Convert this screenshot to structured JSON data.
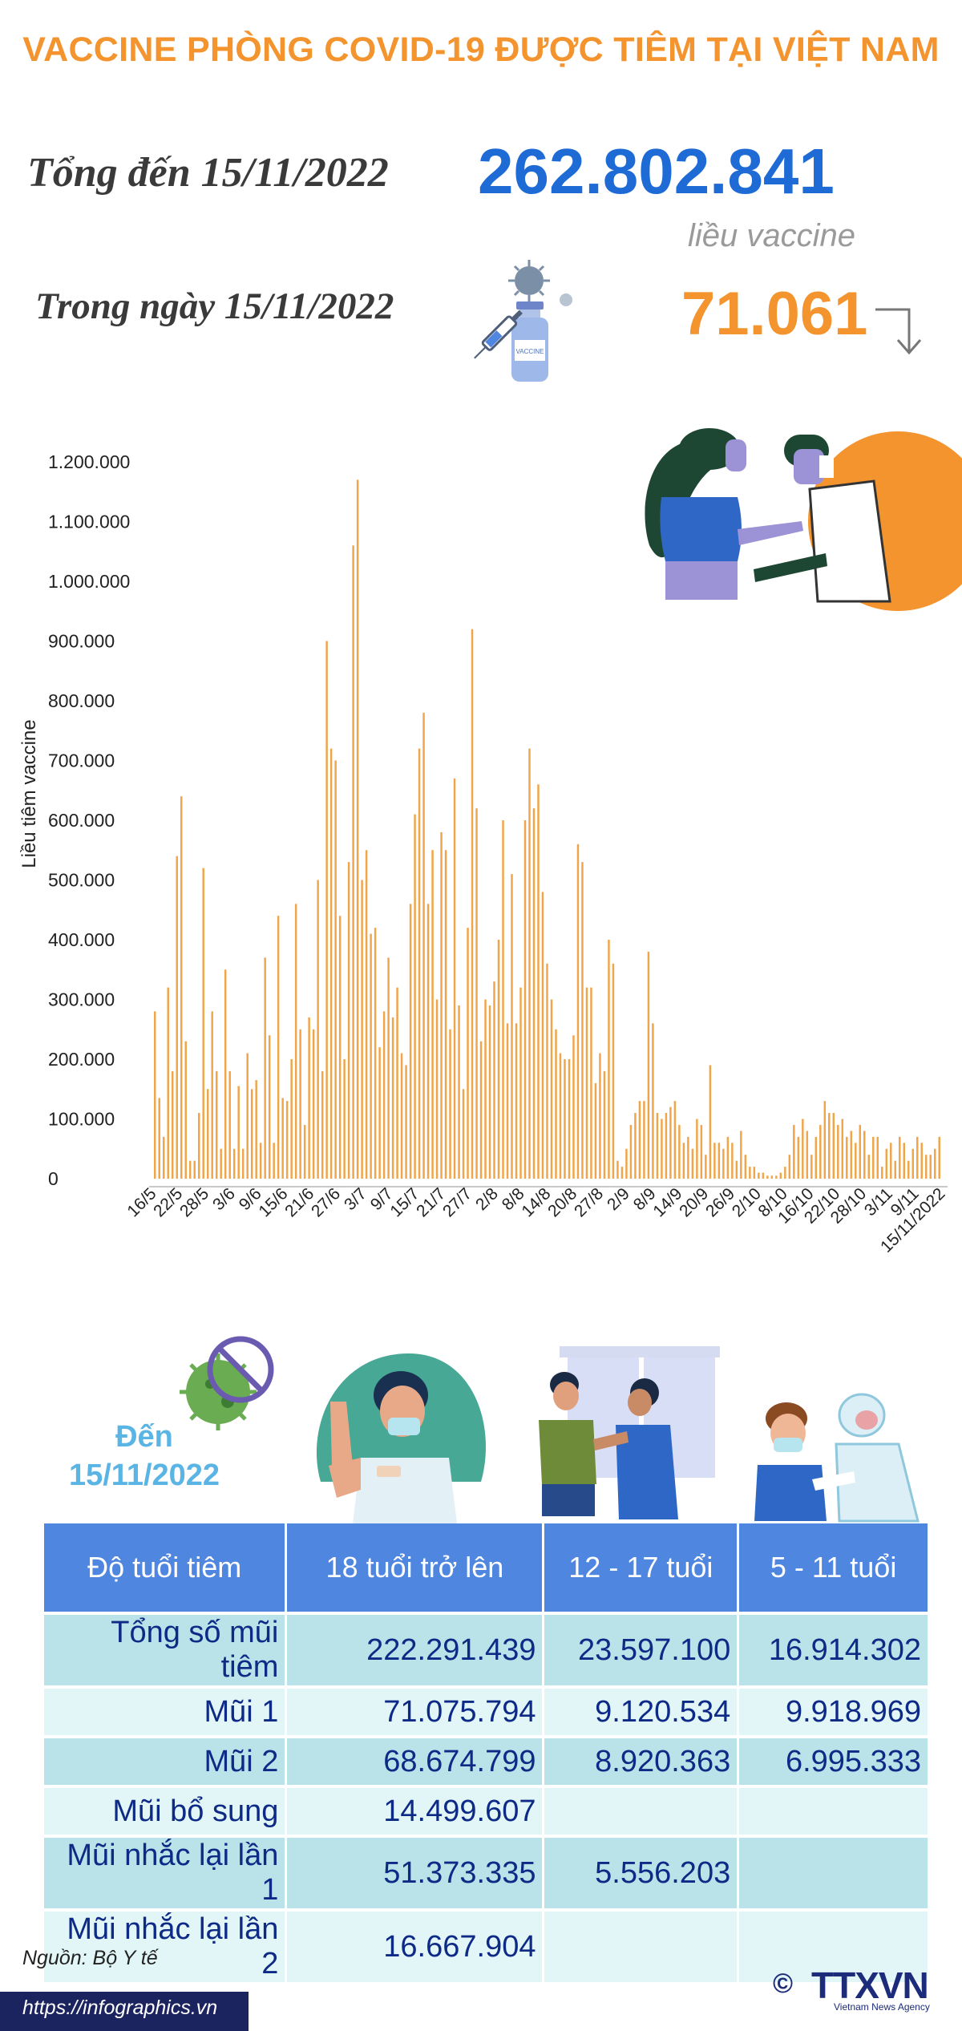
{
  "header": {
    "title": "VACCINE PHÒNG COVID-19 ĐƯỢC TIÊM TẠI VIỆT NAM",
    "total_label": "Tổng đến 15/11/2022",
    "total_value": "262.802.841",
    "total_unit": "liều vaccine",
    "day_label": "Trong ngày 15/11/2022",
    "day_value": "71.061",
    "trend": "down",
    "colors": {
      "orange": "#f3942f",
      "blue": "#1e6bd6"
    }
  },
  "chart_data": {
    "type": "bar",
    "ylabel": "Liều tiêm vaccine",
    "ylim": [
      0,
      1200000
    ],
    "yticks": [
      "0",
      "100.000",
      "200.000",
      "300.000",
      "400.000",
      "500.000",
      "600.000",
      "700.000",
      "800.000",
      "900.000",
      "1.000.000",
      "1.100.000",
      "1.200.000"
    ],
    "xtick_labels": [
      "16/5",
      "22/5",
      "28/5",
      "3/6",
      "9/6",
      "15/6",
      "21/6",
      "27/6",
      "3/7",
      "9/7",
      "15/7",
      "21/7",
      "27/7",
      "2/8",
      "8/8",
      "14/8",
      "20/8",
      "27/8",
      "2/9",
      "8/9",
      "14/9",
      "20/9",
      "26/9",
      "2/10",
      "8/10",
      "16/10",
      "22/10",
      "28/10",
      "3/11",
      "9/11",
      "15/11/2022"
    ],
    "bar_color": "#f0a54a",
    "values": [
      280000,
      135000,
      70000,
      320000,
      180000,
      540000,
      640000,
      230000,
      30000,
      30000,
      110000,
      520000,
      150000,
      280000,
      180000,
      50000,
      350000,
      180000,
      50000,
      155000,
      50000,
      210000,
      150000,
      165000,
      60000,
      370000,
      240000,
      60000,
      440000,
      135000,
      130000,
      200000,
      460000,
      250000,
      90000,
      270000,
      250000,
      500000,
      180000,
      900000,
      720000,
      700000,
      440000,
      200000,
      530000,
      1060000,
      1170000,
      500000,
      550000,
      410000,
      420000,
      220000,
      280000,
      370000,
      270000,
      320000,
      210000,
      190000,
      460000,
      610000,
      720000,
      780000,
      460000,
      550000,
      300000,
      580000,
      550000,
      250000,
      670000,
      290000,
      150000,
      420000,
      920000,
      620000,
      230000,
      300000,
      290000,
      330000,
      400000,
      600000,
      260000,
      510000,
      260000,
      320000,
      600000,
      720000,
      620000,
      660000,
      480000,
      360000,
      300000,
      250000,
      210000,
      200000,
      200000,
      240000,
      560000,
      530000,
      320000,
      320000,
      160000,
      210000,
      180000,
      400000,
      360000,
      30000,
      20000,
      50000,
      90000,
      110000,
      130000,
      130000,
      380000,
      260000,
      110000,
      100000,
      110000,
      120000,
      130000,
      90000,
      60000,
      70000,
      50000,
      100000,
      90000,
      40000,
      190000,
      60000,
      60000,
      50000,
      70000,
      60000,
      30000,
      80000,
      40000,
      20000,
      20000,
      10000,
      10000,
      5000,
      5000,
      5000,
      10000,
      20000,
      40000,
      90000,
      70000,
      100000,
      80000,
      40000,
      70000,
      90000,
      130000,
      110000,
      110000,
      90000,
      100000,
      70000,
      80000,
      60000,
      90000,
      80000,
      40000,
      70000,
      70000,
      20000,
      50000,
      60000,
      30000,
      70000,
      60000,
      30000,
      50000,
      70000,
      60000,
      40000,
      40000,
      50000,
      70000
    ]
  },
  "summary": {
    "as_of_label": "Đến\n15/11/2022",
    "table": {
      "headers": [
        "Độ tuổi tiêm",
        "18 tuổi trở lên",
        "12 - 17 tuổi",
        "5 - 11 tuổi"
      ],
      "rows": [
        {
          "label": "Tổng số mũi tiêm",
          "values": [
            "222.291.439",
            "23.597.100",
            "16.914.302"
          ]
        },
        {
          "label": "Mũi 1",
          "values": [
            "71.075.794",
            "9.120.534",
            "9.918.969"
          ]
        },
        {
          "label": "Mũi 2",
          "values": [
            "68.674.799",
            "8.920.363",
            "6.995.333"
          ]
        },
        {
          "label": "Mũi bổ sung",
          "values": [
            "14.499.607",
            "",
            ""
          ]
        },
        {
          "label": "Mũi nhắc lại lần 1",
          "values": [
            "51.373.335",
            "5.556.203",
            ""
          ]
        },
        {
          "label": "Mũi nhắc lại lần 2",
          "values": [
            "16.667.904",
            "",
            ""
          ]
        }
      ]
    }
  },
  "footer": {
    "source": "Nguồn: Bộ Y tế",
    "url": "https://infographics.vn",
    "copyright": "©",
    "logo": "TTXVN",
    "logo_sub": "Vietnam News Agency"
  }
}
